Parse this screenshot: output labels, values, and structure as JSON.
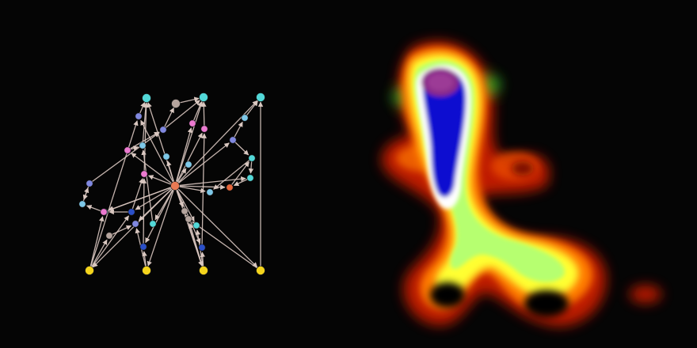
{
  "palette": {
    "background": "#050505",
    "edge": "#d9c7c0",
    "node_yellow": "#f4d41c",
    "node_cyan": "#52d8d8",
    "node_light_cyan": "#7ec8e8",
    "node_blue": "#2a4fc8",
    "node_periwinkle": "#8088e0",
    "node_pink": "#ec7ad0",
    "node_gray": "#b5a49d",
    "node_orange": "#e8663a",
    "hub": "#e87a54"
  },
  "panels": [
    {
      "id": "graph",
      "type": "directed-graph"
    },
    {
      "id": "heatmap",
      "type": "density-map"
    }
  ],
  "graph": {
    "nodes": [
      {
        "id": "t1",
        "color": "node_cyan"
      },
      {
        "id": "t2",
        "color": "node_gray"
      },
      {
        "id": "t3",
        "color": "node_cyan"
      },
      {
        "id": "t4",
        "color": "node_cyan"
      },
      {
        "id": "a1",
        "color": "node_periwinkle"
      },
      {
        "id": "a2",
        "color": "node_periwinkle"
      },
      {
        "id": "a3",
        "color": "node_pink"
      },
      {
        "id": "a4",
        "color": "node_pink"
      },
      {
        "id": "a5",
        "color": "node_light_cyan"
      },
      {
        "id": "a6",
        "color": "node_light_cyan"
      },
      {
        "id": "a7",
        "color": "node_pink"
      },
      {
        "id": "a8",
        "color": "node_light_cyan"
      },
      {
        "id": "a9",
        "color": "node_periwinkle"
      },
      {
        "id": "a10",
        "color": "node_light_cyan"
      },
      {
        "id": "a11",
        "color": "node_pink"
      },
      {
        "id": "a12",
        "color": "node_cyan"
      },
      {
        "id": "a13",
        "color": "node_periwinkle"
      },
      {
        "id": "a14",
        "color": "node_light_cyan"
      },
      {
        "id": "a15",
        "color": "node_cyan"
      },
      {
        "id": "a16",
        "color": "node_light_cyan"
      },
      {
        "id": "hub",
        "color": "hub"
      },
      {
        "id": "a17",
        "color": "node_orange"
      },
      {
        "id": "a18",
        "color": "node_light_cyan"
      },
      {
        "id": "a19",
        "color": "node_pink"
      },
      {
        "id": "a20",
        "color": "node_blue"
      },
      {
        "id": "a21",
        "color": "node_gray"
      },
      {
        "id": "a22",
        "color": "node_periwinkle"
      },
      {
        "id": "a23",
        "color": "node_cyan"
      },
      {
        "id": "a24",
        "color": "node_gray"
      },
      {
        "id": "a25",
        "color": "node_cyan"
      },
      {
        "id": "a26",
        "color": "node_gray"
      },
      {
        "id": "a27",
        "color": "node_blue"
      },
      {
        "id": "a28",
        "color": "node_blue"
      },
      {
        "id": "b1",
        "color": "node_yellow"
      },
      {
        "id": "b2",
        "color": "node_yellow"
      },
      {
        "id": "b3",
        "color": "node_yellow"
      },
      {
        "id": "b4",
        "color": "node_yellow"
      }
    ],
    "edges": [
      [
        "hub",
        "t1"
      ],
      [
        "hub",
        "t3"
      ],
      [
        "hub",
        "t4"
      ],
      [
        "hub",
        "a3"
      ],
      [
        "hub",
        "a4"
      ],
      [
        "hub",
        "a7"
      ],
      [
        "hub",
        "a1"
      ],
      [
        "hub",
        "a8"
      ],
      [
        "hub",
        "a10"
      ],
      [
        "hub",
        "a11"
      ],
      [
        "hub",
        "a12"
      ],
      [
        "hub",
        "a13"
      ],
      [
        "hub",
        "a14"
      ],
      [
        "hub",
        "a17"
      ],
      [
        "hub",
        "a18"
      ],
      [
        "hub",
        "a19"
      ],
      [
        "hub",
        "a20"
      ],
      [
        "hub",
        "a22"
      ],
      [
        "hub",
        "a23"
      ],
      [
        "hub",
        "a24"
      ],
      [
        "hub",
        "a25"
      ],
      [
        "hub",
        "a27"
      ],
      [
        "hub",
        "a28"
      ],
      [
        "hub",
        "b1"
      ],
      [
        "hub",
        "b2"
      ],
      [
        "hub",
        "b3"
      ],
      [
        "hub",
        "b4"
      ],
      [
        "t2",
        "t3"
      ],
      [
        "a1",
        "t1"
      ],
      [
        "a2",
        "t2"
      ],
      [
        "a2",
        "t3"
      ],
      [
        "a3",
        "t3"
      ],
      [
        "a4",
        "t3"
      ],
      [
        "a5",
        "t1"
      ],
      [
        "a6",
        "t4"
      ],
      [
        "a7",
        "a5"
      ],
      [
        "a7",
        "a2"
      ],
      [
        "a16",
        "a9"
      ],
      [
        "a9",
        "a2"
      ],
      [
        "a9",
        "a16"
      ],
      [
        "a11",
        "t1"
      ],
      [
        "a19",
        "a16"
      ],
      [
        "a13",
        "a15"
      ],
      [
        "a13",
        "a6"
      ],
      [
        "a15",
        "a14"
      ],
      [
        "a15",
        "a12"
      ],
      [
        "a17",
        "a15"
      ],
      [
        "a12",
        "a17"
      ],
      [
        "b1",
        "a19"
      ],
      [
        "b1",
        "a21"
      ],
      [
        "b1",
        "a20"
      ],
      [
        "b2",
        "a22"
      ],
      [
        "b2",
        "a28"
      ],
      [
        "b3",
        "a25"
      ],
      [
        "b3",
        "a26"
      ],
      [
        "b3",
        "a27"
      ],
      [
        "b4",
        "t4"
      ],
      [
        "b4",
        "a26"
      ],
      [
        "a21",
        "a22"
      ],
      [
        "a20",
        "a18"
      ],
      [
        "a24",
        "b3"
      ],
      [
        "a27",
        "a4"
      ],
      [
        "a28",
        "a11"
      ],
      [
        "a26",
        "a24"
      ],
      [
        "b1",
        "a1"
      ],
      [
        "a20",
        "a11"
      ],
      [
        "a23",
        "a5"
      ]
    ]
  },
  "heatmap": {
    "colormap": [
      "#000000",
      "#c81e00",
      "#ff7a00",
      "#ffff30",
      "#aaff80",
      "#ffffff",
      "#1010d0",
      "#8a2a8a"
    ]
  }
}
